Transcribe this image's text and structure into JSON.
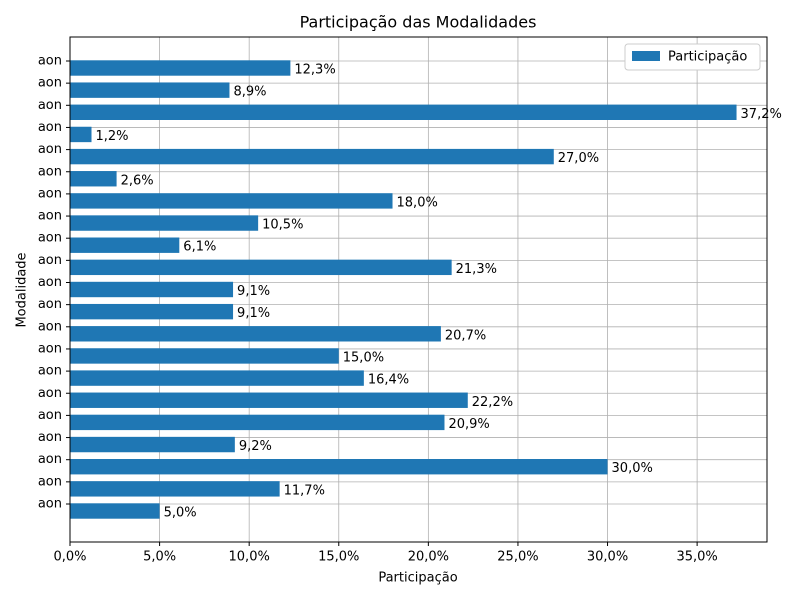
{
  "chart_data": {
    "type": "barh",
    "title": "Participação das Modalidades",
    "xlabel": "Participação",
    "ylabel": "Modalidade",
    "categories": [
      "aon",
      "aon",
      "aon",
      "aon",
      "aon",
      "aon",
      "aon",
      "aon",
      "aon",
      "aon",
      "aon",
      "aon",
      "aon",
      "aon",
      "aon",
      "aon",
      "aon",
      "aon",
      "aon",
      "aon",
      "aon"
    ],
    "series": [
      {
        "name": "Participação",
        "color": "#1f77b4",
        "values": [
          5.0,
          11.7,
          30.0,
          9.2,
          20.9,
          22.2,
          16.4,
          15.0,
          20.7,
          9.1,
          9.1,
          21.3,
          6.1,
          10.5,
          18.0,
          2.6,
          27.0,
          1.2,
          37.2,
          8.9,
          12.3
        ],
        "value_labels": [
          "5,0%",
          "11,7%",
          "30,0%",
          "9,2%",
          "20,9%",
          "22,2%",
          "16,4%",
          "15,0%",
          "20,7%",
          "9,1%",
          "9,1%",
          "21,3%",
          "6,1%",
          "10,5%",
          "18,0%",
          "2,6%",
          "27,0%",
          "1,2%",
          "37,2%",
          "8,9%",
          "12,3%"
        ]
      }
    ],
    "xlim": [
      0,
      38.9
    ],
    "xticks": [
      {
        "value": 0,
        "label": "0,0%"
      },
      {
        "value": 5,
        "label": "5,0%"
      },
      {
        "value": 10,
        "label": "10,0%"
      },
      {
        "value": 15,
        "label": "15,0%"
      },
      {
        "value": 20,
        "label": "20,0%"
      },
      {
        "value": 25,
        "label": "25,0%"
      },
      {
        "value": 30,
        "label": "30,0%"
      },
      {
        "value": 35,
        "label": "35,0%"
      }
    ],
    "grid": true,
    "legend": "upper right"
  }
}
